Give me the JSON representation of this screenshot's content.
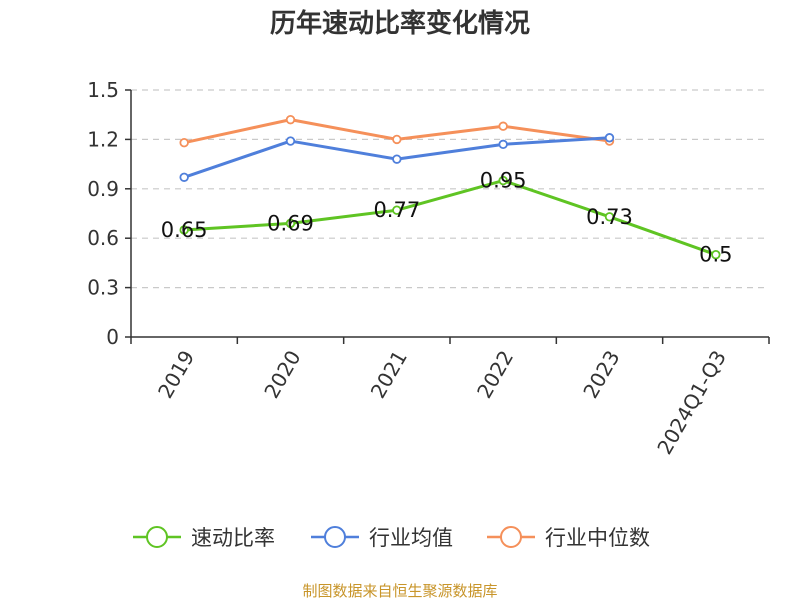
{
  "chart_data": {
    "type": "line",
    "title": "历年速动比率变化情况",
    "categories": [
      "2019",
      "2020",
      "2021",
      "2022",
      "2023",
      "2024Q1-Q3"
    ],
    "ylim": [
      0,
      1.5
    ],
    "yticks": [
      "0",
      "0.3",
      "0.6",
      "0.9",
      "1.2",
      "1.5"
    ],
    "grid": true,
    "legend_position": "bottom",
    "series": [
      {
        "name": "速动比率",
        "color": "#5fc423",
        "values": [
          0.65,
          0.69,
          0.77,
          0.95,
          0.73,
          0.5
        ],
        "labels": [
          "0.65",
          "0.69",
          "0.77",
          "0.95",
          "0.73",
          "0.5"
        ]
      },
      {
        "name": "行业均值",
        "color": "#4f7fdb",
        "values": [
          0.97,
          1.19,
          1.08,
          1.17,
          1.21,
          null
        ]
      },
      {
        "name": "行业中位数",
        "color": "#f5905a",
        "values": [
          1.18,
          1.32,
          1.2,
          1.28,
          1.19,
          null
        ]
      }
    ],
    "source": "制图数据来自恒生聚源数据库"
  }
}
